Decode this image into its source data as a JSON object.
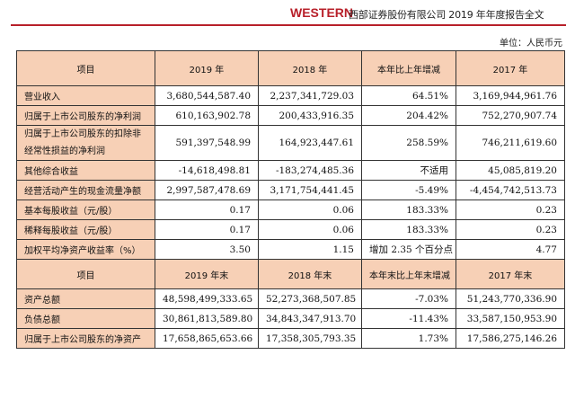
{
  "header": {
    "logo_text": "WESTERN",
    "title": "西部证券股份有限公司 2019 年年度报告全文",
    "brand_color": "#b8202a"
  },
  "unit_label": "单位：人民币元",
  "table1": {
    "headers": [
      "项目",
      "2019 年",
      "2018 年",
      "本年比上年增减",
      "2017 年"
    ],
    "rows": [
      {
        "label": "营业收入",
        "v2019": "3,680,544,587.40",
        "v2018": "2,237,341,729.03",
        "change": "64.51%",
        "v2017": "3,169,944,961.76"
      },
      {
        "label": "归属于上市公司股东的净利润",
        "v2019": "610,163,902.78",
        "v2018": "200,433,916.35",
        "change": "204.42%",
        "v2017": "752,270,907.74"
      },
      {
        "label": "归属于上市公司股东的扣除非经常性损益的净利润",
        "v2019": "591,397,548.99",
        "v2018": "164,923,447.61",
        "change": "258.59%",
        "v2017": "746,211,619.60"
      },
      {
        "label": "其他综合收益",
        "v2019": "-14,618,498.81",
        "v2018": "-183,274,485.36",
        "change": "不适用",
        "v2017": "45,085,819.20"
      },
      {
        "label": "经营活动产生的现金流量净额",
        "v2019": "2,997,587,478.69",
        "v2018": "3,171,754,441.45",
        "change": "-5.49%",
        "v2017": "-4,454,742,513.73"
      },
      {
        "label": "基本每股收益（元/股）",
        "v2019": "0.17",
        "v2018": "0.06",
        "change": "183.33%",
        "v2017": "0.23"
      },
      {
        "label": "稀释每股收益（元/股）",
        "v2019": "0.17",
        "v2018": "0.06",
        "change": "183.33%",
        "v2017": "0.23"
      },
      {
        "label": "加权平均净资产收益率（%）",
        "v2019": "3.50",
        "v2018": "1.15",
        "change": "增加 2.35 个百分点",
        "v2017": "4.77"
      }
    ]
  },
  "table2": {
    "headers": [
      "项目",
      "2019 年末",
      "2018 年末",
      "本年末比上年末增减",
      "2017 年末"
    ],
    "rows": [
      {
        "label": "资产总额",
        "v2019": "48,598,499,333.65",
        "v2018": "52,273,368,507.85",
        "change": "-7.03%",
        "v2017": "51,243,770,336.90"
      },
      {
        "label": "负债总额",
        "v2019": "30,861,813,589.80",
        "v2018": "34,843,347,913.70",
        "change": "-11.43%",
        "v2017": "33,587,150,953.90"
      },
      {
        "label": "归属于上市公司股东的净资产",
        "v2019": "17,658,865,653.66",
        "v2018": "17,358,305,793.35",
        "change": "1.73%",
        "v2017": "17,586,275,146.26"
      }
    ]
  }
}
